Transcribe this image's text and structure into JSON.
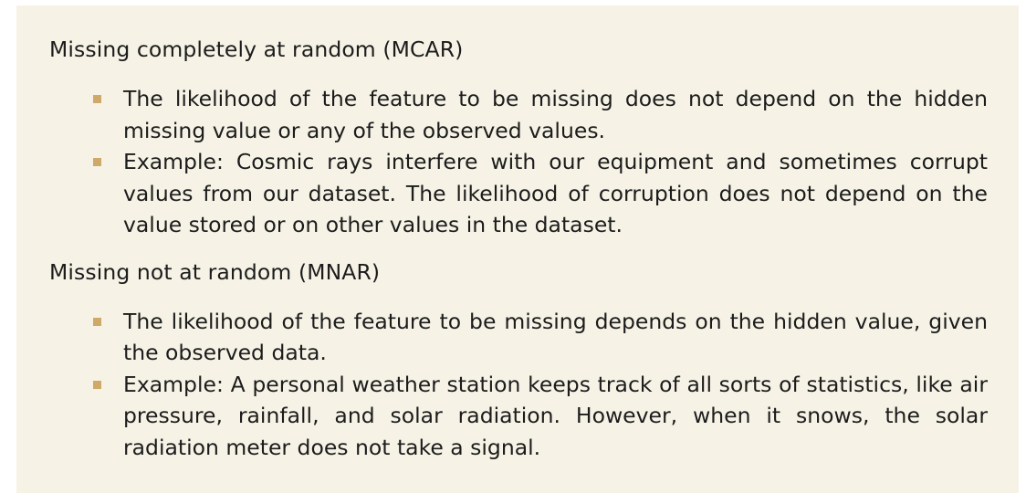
{
  "sections": [
    {
      "heading": "Missing completely at random (MCAR)",
      "bullets": [
        "The likelihood of the feature to be missing does not depend on the hidden missing value or any of the observed values.",
        "Example: Cosmic rays interfere with our equipment and sometimes corrupt values from our dataset. The likelihood of corruption does not depend on the value stored or on other values in the dataset."
      ]
    },
    {
      "heading": "Missing not at random (MNAR)",
      "bullets": [
        "The likelihood of the feature to be missing depends on the hidden value, given the observed data.",
        "Example: A personal weather station keeps track of all sorts of statistics, like air pressure, rainfall, and solar radiation. However, when it snows, the solar radiation meter does not take a signal."
      ]
    }
  ],
  "colors": {
    "panel_background": "#f6f3e6",
    "bullet_marker": "#cfa96a",
    "text": "#1c1c1c"
  }
}
